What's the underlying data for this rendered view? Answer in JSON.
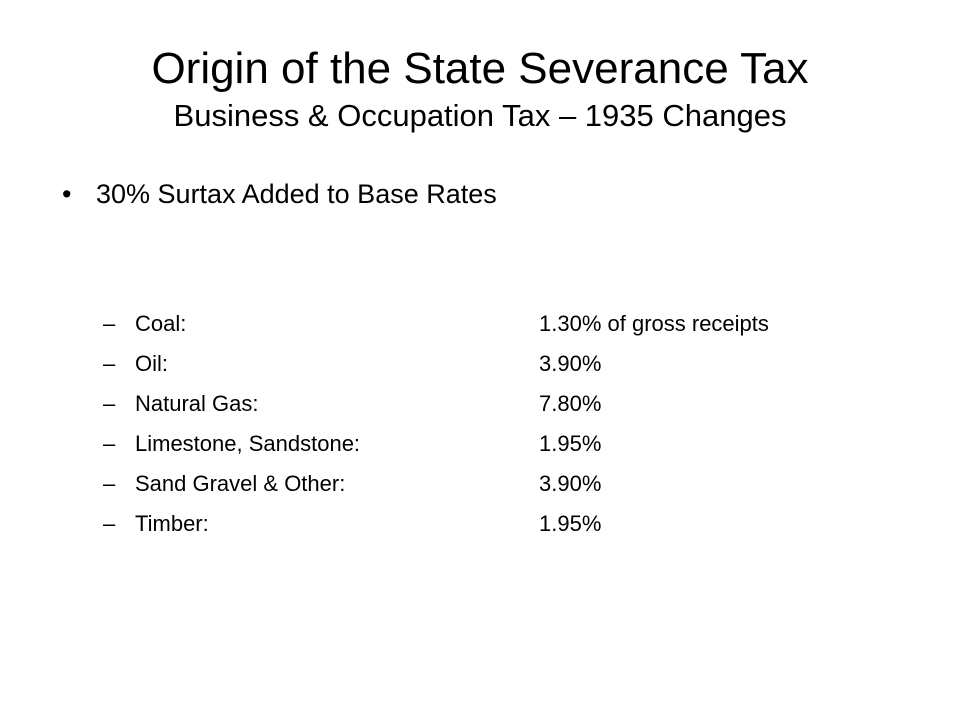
{
  "slide": {
    "title": "Origin of the State Severance Tax",
    "subtitle": "Business & Occupation Tax – 1935 Changes",
    "bullet": {
      "marker": "•",
      "text": "30% Surtax Added to Base Rates"
    },
    "sub_marker": "–",
    "rates": [
      {
        "label": "Coal:",
        "value": "1.30% of gross receipts"
      },
      {
        "label": "Oil:",
        "value": "3.90%"
      },
      {
        "label": "Natural Gas:",
        "value": "7.80%"
      },
      {
        "label": "Limestone, Sandstone:",
        "value": "1.95%"
      },
      {
        "label": "Sand Gravel & Other:",
        "value": "3.90%"
      },
      {
        "label": "Timber:",
        "value": "1.95%"
      }
    ]
  }
}
